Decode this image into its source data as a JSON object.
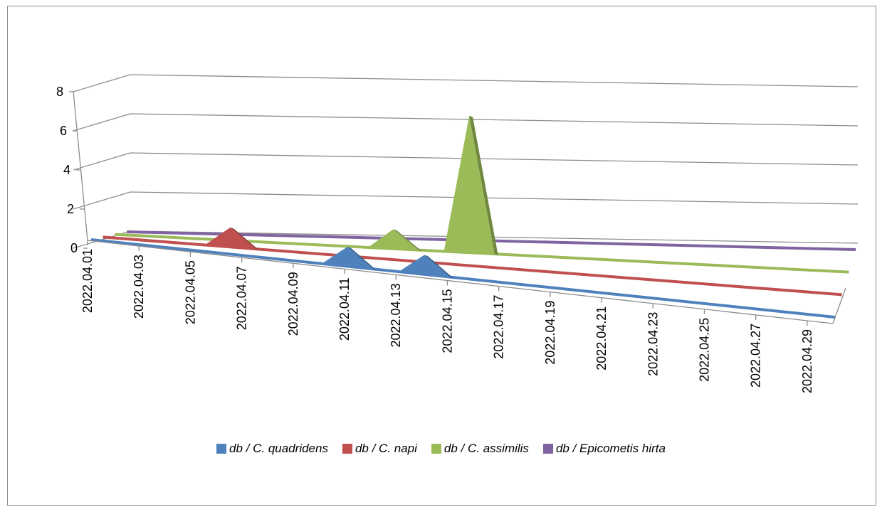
{
  "chart_data": {
    "type": "area",
    "title": "",
    "xlabel": "",
    "ylabel": "",
    "ylim": [
      0,
      8
    ],
    "y_ticks": [
      "0",
      "2",
      "4",
      "6",
      "8"
    ],
    "x_tick_labels": [
      "2022.04.01",
      "2022.04.03",
      "2022.04.05",
      "2022.04.07",
      "2022.04.09",
      "2022.04.11",
      "2022.04.13",
      "2022.04.15",
      "2022.04.17",
      "2022.04.19",
      "2022.04.21",
      "2022.04.23",
      "2022.04.25",
      "2022.04.27",
      "2022.04.29"
    ],
    "grid": true,
    "legend_position": "bottom",
    "series": [
      {
        "name": "db /  C. quadridens",
        "color": "#4f81bd",
        "points": [
          [
            "2022.04.11",
            1
          ],
          [
            "2022.04.14",
            1
          ]
        ]
      },
      {
        "name": "db / C. napi",
        "color": "#c0504d",
        "points": [
          [
            "2022.04.06",
            1
          ]
        ]
      },
      {
        "name": "db / C. assimilis",
        "color": "#9bbb59",
        "points": [
          [
            "2022.04.12",
            1
          ],
          [
            "2022.04.15",
            7
          ]
        ]
      },
      {
        "name": "db / Epicometis hirta",
        "color": "#8064a2",
        "points": []
      }
    ]
  }
}
